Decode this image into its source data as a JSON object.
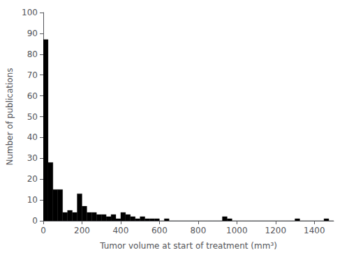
{
  "chart_data": {
    "type": "histogram",
    "xlabel": "Tumor volume at start of treatment (mm³)",
    "ylabel": "Number of publications",
    "bins": [
      0,
      25,
      50,
      75,
      100,
      125,
      150,
      175,
      200,
      225,
      250,
      275,
      300,
      325,
      350,
      375,
      400,
      425,
      450,
      475,
      500,
      525,
      550,
      575,
      600,
      625,
      650,
      675,
      700,
      725,
      750,
      775,
      800,
      825,
      850,
      875,
      900,
      925,
      950,
      975,
      1000,
      1025,
      1050,
      1075,
      1100,
      1125,
      1150,
      1175,
      1200,
      1225,
      1250,
      1275,
      1300,
      1325,
      1350,
      1375,
      1400,
      1425,
      1450,
      1475,
      1500
    ],
    "values": [
      87,
      28,
      15,
      15,
      4,
      5,
      4,
      13,
      7,
      4,
      4,
      3,
      3,
      2,
      3,
      1,
      4,
      3,
      2,
      1,
      2,
      1,
      1,
      1,
      0,
      1,
      0,
      0,
      0,
      0,
      0,
      0,
      0,
      0,
      0,
      0,
      0,
      2,
      1,
      0,
      0,
      0,
      0,
      0,
      0,
      0,
      0,
      0,
      0,
      0,
      0,
      0,
      1,
      0,
      0,
      0,
      0,
      0,
      1,
      0
    ],
    "color": "#000000",
    "xlim": [
      0,
      1500
    ],
    "ylim": [
      0,
      100
    ],
    "xticks": [
      0,
      200,
      400,
      600,
      800,
      1000,
      1200,
      1400
    ],
    "yticks": [
      0,
      10,
      20,
      30,
      40,
      50,
      60,
      70,
      80,
      90,
      100
    ],
    "grid": false
  }
}
